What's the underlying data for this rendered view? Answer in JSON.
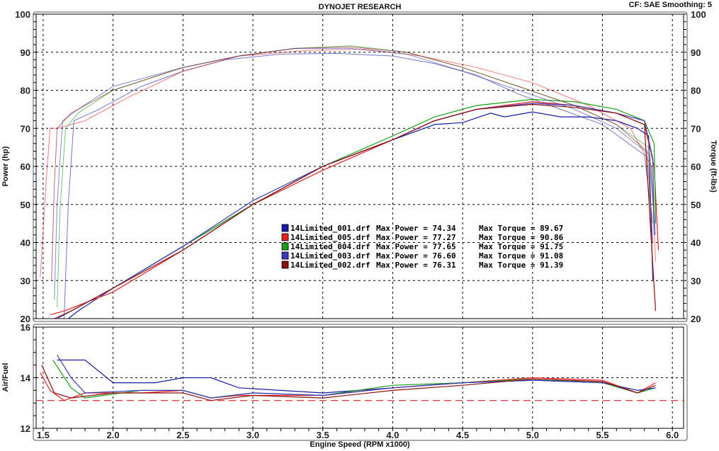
{
  "header": {
    "title": "DYNOJET RESEARCH",
    "settings": "CF: SAE  Smoothing: 5"
  },
  "chart_data": [
    {
      "type": "line",
      "title": "DYNOJET RESEARCH",
      "xlabel": "Engine Speed (RPM x1000)",
      "ylabel": "Power (hp)",
      "y2label": "Torque (ft-lbs)",
      "xlim": [
        1.45,
        6.08
      ],
      "ylim": [
        20,
        100
      ],
      "y2lim": [
        20,
        100
      ],
      "xticks": [
        "1.5",
        "2.0",
        "2.5",
        "3.0",
        "3.5",
        "4.0",
        "4.5",
        "5.0",
        "5.5",
        "6.0"
      ],
      "yticks": [
        "20",
        "30",
        "40",
        "50",
        "60",
        "70",
        "80",
        "90",
        "100"
      ],
      "grid": true,
      "legend_position": "center",
      "series": [
        {
          "name": "14Limited_001.drf",
          "color": "#1a1aa6",
          "max_power_text": "Max Power = 74.34",
          "max_torque_text": "Max Torque = 89.67",
          "power": [
            [
              1.68,
              20
            ],
            [
              1.75,
              22
            ],
            [
              2.0,
              28
            ],
            [
              2.5,
              39
            ],
            [
              3.0,
              50
            ],
            [
              3.5,
              60
            ],
            [
              4.0,
              67
            ],
            [
              4.3,
              71
            ],
            [
              4.5,
              71.5
            ],
            [
              4.7,
              74
            ],
            [
              4.8,
              73
            ],
            [
              5.0,
              74.3
            ],
            [
              5.2,
              73
            ],
            [
              5.4,
              73
            ],
            [
              5.6,
              72
            ],
            [
              5.75,
              70
            ],
            [
              5.83,
              68
            ],
            [
              5.86,
              30
            ]
          ],
          "torque": [
            [
              1.65,
              20
            ],
            [
              1.68,
              50
            ],
            [
              1.72,
              72
            ],
            [
              1.9,
              75
            ],
            [
              2.2,
              81
            ],
            [
              2.5,
              85
            ],
            [
              2.8,
              88
            ],
            [
              3.2,
              89.5
            ],
            [
              3.6,
              89.7
            ],
            [
              4.0,
              89
            ],
            [
              4.3,
              87
            ],
            [
              4.6,
              84
            ],
            [
              4.9,
              79
            ],
            [
              5.2,
              75
            ],
            [
              5.5,
              71
            ],
            [
              5.8,
              63
            ],
            [
              5.86,
              45
            ]
          ]
        },
        {
          "name": "14Limited_005.drf",
          "color": "#e82020",
          "max_power_text": "Max Power = 77.27",
          "max_torque_text": "Max Torque = 90.86",
          "power": [
            [
              1.55,
              21
            ],
            [
              1.65,
              22
            ],
            [
              2.0,
              27
            ],
            [
              2.5,
              38
            ],
            [
              3.0,
              50
            ],
            [
              3.5,
              59
            ],
            [
              4.0,
              67
            ],
            [
              4.3,
              72
            ],
            [
              4.6,
              75
            ],
            [
              5.0,
              77
            ],
            [
              5.3,
              76
            ],
            [
              5.6,
              74
            ],
            [
              5.8,
              71
            ],
            [
              5.87,
              60
            ],
            [
              5.9,
              38
            ]
          ],
          "torque": [
            [
              1.48,
              31
            ],
            [
              1.52,
              55
            ],
            [
              1.55,
              70
            ],
            [
              1.6,
              70
            ],
            [
              1.8,
              72
            ],
            [
              2.1,
              78
            ],
            [
              2.5,
              85
            ],
            [
              2.9,
              89
            ],
            [
              3.4,
              90.5
            ],
            [
              3.8,
              90.8
            ],
            [
              4.2,
              89
            ],
            [
              4.6,
              86
            ],
            [
              5.0,
              82
            ],
            [
              5.4,
              76
            ],
            [
              5.7,
              70
            ],
            [
              5.85,
              60
            ],
            [
              5.88,
              35
            ]
          ]
        },
        {
          "name": "14Limited_004.drf",
          "color": "#18a018",
          "max_power_text": "Max Power = 77.65",
          "max_torque_text": "Max Torque = 91.75",
          "power": [
            [
              1.65,
              21
            ],
            [
              2.0,
              28
            ],
            [
              2.5,
              39
            ],
            [
              3.0,
              50
            ],
            [
              3.5,
              60
            ],
            [
              4.0,
              68
            ],
            [
              4.3,
              73
            ],
            [
              4.6,
              76
            ],
            [
              5.0,
              77.6
            ],
            [
              5.3,
              77
            ],
            [
              5.6,
              75
            ],
            [
              5.8,
              72
            ],
            [
              5.87,
              66
            ],
            [
              5.88,
              45
            ]
          ],
          "torque": [
            [
              1.6,
              23
            ],
            [
              1.62,
              48
            ],
            [
              1.66,
              70
            ],
            [
              1.75,
              74
            ],
            [
              2.0,
              80
            ],
            [
              2.5,
              86
            ],
            [
              2.9,
              89
            ],
            [
              3.3,
              91
            ],
            [
              3.7,
              91.7
            ],
            [
              4.1,
              90
            ],
            [
              4.5,
              86
            ],
            [
              4.9,
              81
            ],
            [
              5.3,
              76
            ],
            [
              5.6,
              71
            ],
            [
              5.83,
              65
            ],
            [
              5.86,
              50
            ]
          ]
        },
        {
          "name": "14Limited_003.drf",
          "color": "#3a3ab8",
          "max_power_text": "Max Power = 76.60",
          "max_torque_text": "Max Torque = 91.08",
          "power": [
            [
              1.6,
              20
            ],
            [
              1.7,
              22
            ],
            [
              2.0,
              28
            ],
            [
              2.5,
              39
            ],
            [
              3.0,
              51
            ],
            [
              3.5,
              60
            ],
            [
              4.0,
              67
            ],
            [
              4.3,
              72
            ],
            [
              4.6,
              75
            ],
            [
              5.0,
              76.6
            ],
            [
              5.3,
              76
            ],
            [
              5.6,
              74
            ],
            [
              5.8,
              72
            ],
            [
              5.86,
              62
            ],
            [
              5.87,
              42
            ]
          ],
          "torque": [
            [
              1.58,
              25
            ],
            [
              1.6,
              50
            ],
            [
              1.64,
              72
            ],
            [
              1.75,
              75
            ],
            [
              2.0,
              81
            ],
            [
              2.5,
              86
            ],
            [
              2.9,
              89
            ],
            [
              3.3,
              91
            ],
            [
              3.7,
              91
            ],
            [
              4.1,
              89.5
            ],
            [
              4.5,
              85
            ],
            [
              4.9,
              80
            ],
            [
              5.3,
              75
            ],
            [
              5.6,
              70
            ],
            [
              5.84,
              63
            ],
            [
              5.88,
              42
            ]
          ]
        },
        {
          "name": "14Limited_002.drf",
          "color": "#8a1010",
          "max_power_text": "Max Power = 76.31",
          "max_torque_text": "Max Torque = 91.39",
          "power": [
            [
              1.58,
              20
            ],
            [
              1.7,
              22
            ],
            [
              2.0,
              28
            ],
            [
              2.5,
              38
            ],
            [
              3.0,
              50
            ],
            [
              3.5,
              60
            ],
            [
              4.0,
              67
            ],
            [
              4.3,
              72
            ],
            [
              4.6,
              75
            ],
            [
              5.0,
              76.3
            ],
            [
              5.3,
              75.5
            ],
            [
              5.6,
              74
            ],
            [
              5.8,
              71
            ],
            [
              5.85,
              40
            ],
            [
              5.88,
              22
            ]
          ],
          "torque": [
            [
              1.56,
              30
            ],
            [
              1.58,
              55
            ],
            [
              1.6,
              70
            ],
            [
              1.7,
              74
            ],
            [
              2.0,
              80
            ],
            [
              2.5,
              86
            ],
            [
              2.9,
              89
            ],
            [
              3.3,
              91
            ],
            [
              3.7,
              91.4
            ],
            [
              4.1,
              90
            ],
            [
              4.5,
              86
            ],
            [
              4.9,
              81
            ],
            [
              5.3,
              76
            ],
            [
              5.6,
              71
            ],
            [
              5.82,
              64
            ],
            [
              5.86,
              40
            ]
          ]
        }
      ]
    },
    {
      "type": "line",
      "ylabel": "Air/Fuel",
      "xlim": [
        1.45,
        6.08
      ],
      "ylim": [
        12,
        16
      ],
      "yticks": [
        "12",
        "14",
        "16"
      ],
      "grid": true,
      "reference_line": {
        "value": 13.1,
        "color": "#e02020",
        "style": "dashed"
      },
      "series": [
        {
          "color": "#1a1aa6",
          "afr": [
            [
              1.6,
              14.7
            ],
            [
              1.8,
              14.7
            ],
            [
              2.0,
              13.8
            ],
            [
              2.3,
              13.8
            ],
            [
              2.5,
              14.0
            ],
            [
              2.7,
              14.0
            ],
            [
              2.9,
              13.6
            ],
            [
              3.2,
              13.5
            ],
            [
              3.5,
              13.4
            ],
            [
              4.0,
              13.6
            ],
            [
              4.5,
              13.8
            ],
            [
              5.0,
              13.9
            ],
            [
              5.5,
              13.8
            ],
            [
              5.75,
              13.5
            ],
            [
              5.88,
              13.6
            ]
          ]
        },
        {
          "color": "#e82020",
          "afr": [
            [
              1.48,
              14.2
            ],
            [
              1.55,
              13.5
            ],
            [
              1.65,
              13.1
            ],
            [
              1.8,
              13.4
            ],
            [
              2.2,
              13.4
            ],
            [
              2.5,
              13.5
            ],
            [
              2.7,
              13.2
            ],
            [
              2.9,
              13.3
            ],
            [
              3.5,
              13.3
            ],
            [
              4.0,
              13.6
            ],
            [
              4.5,
              13.8
            ],
            [
              5.0,
              14.0
            ],
            [
              5.5,
              13.9
            ],
            [
              5.75,
              13.4
            ],
            [
              5.88,
              13.8
            ]
          ]
        },
        {
          "color": "#18a018",
          "afr": [
            [
              1.57,
              14.7
            ],
            [
              1.7,
              13.6
            ],
            [
              1.8,
              13.2
            ],
            [
              2.2,
              13.5
            ],
            [
              2.5,
              13.5
            ],
            [
              2.7,
              13.2
            ],
            [
              3.0,
              13.4
            ],
            [
              3.5,
              13.3
            ],
            [
              4.0,
              13.7
            ],
            [
              4.5,
              13.8
            ],
            [
              5.0,
              13.95
            ],
            [
              5.5,
              13.8
            ],
            [
              5.75,
              13.4
            ],
            [
              5.88,
              13.6
            ]
          ]
        },
        {
          "color": "#3a3ab8",
          "afr": [
            [
              1.6,
              14.9
            ],
            [
              1.7,
              14.0
            ],
            [
              1.8,
              13.4
            ],
            [
              2.2,
              13.5
            ],
            [
              2.5,
              13.5
            ],
            [
              2.7,
              13.2
            ],
            [
              3.0,
              13.4
            ],
            [
              3.5,
              13.3
            ],
            [
              4.0,
              13.6
            ],
            [
              4.5,
              13.8
            ],
            [
              5.0,
              13.9
            ],
            [
              5.5,
              13.8
            ],
            [
              5.75,
              13.5
            ],
            [
              5.88,
              13.6
            ]
          ]
        },
        {
          "color": "#8a1010",
          "afr": [
            [
              1.49,
              14.5
            ],
            [
              1.58,
              13.4
            ],
            [
              1.7,
              13.2
            ],
            [
              2.0,
              13.4
            ],
            [
              2.5,
              13.4
            ],
            [
              2.7,
              13.1
            ],
            [
              3.0,
              13.3
            ],
            [
              3.5,
              13.2
            ],
            [
              4.0,
              13.5
            ],
            [
              4.5,
              13.7
            ],
            [
              5.0,
              13.95
            ],
            [
              5.5,
              13.85
            ],
            [
              5.75,
              13.4
            ],
            [
              5.88,
              13.7
            ]
          ]
        }
      ]
    }
  ]
}
